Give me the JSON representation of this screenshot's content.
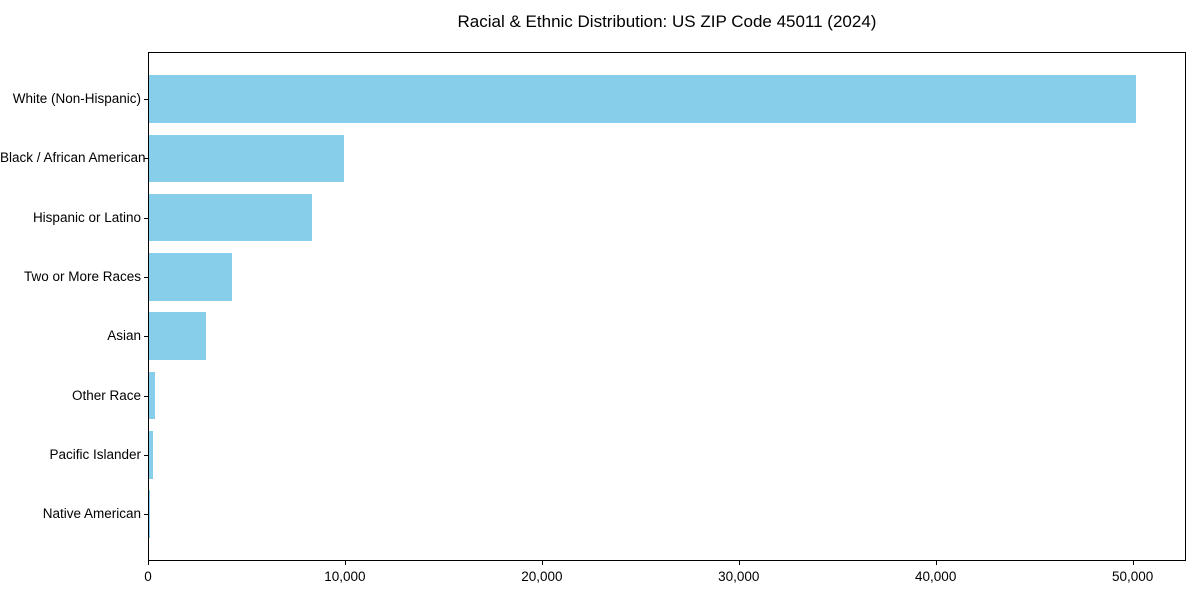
{
  "figure": {
    "background": "#ffffff"
  },
  "chart_data": {
    "type": "bar",
    "orientation": "horizontal",
    "title": "Racial & Ethnic Distribution: US ZIP Code 45011 (2024)",
    "categories": [
      "White (Non-Hispanic)",
      "Black / African American",
      "Hispanic or Latino",
      "Two or More Races",
      "Asian",
      "Other Race",
      "Pacific Islander",
      "Native American"
    ],
    "values": [
      50200,
      9900,
      8300,
      4200,
      2900,
      300,
      200,
      25
    ],
    "xlabel": "",
    "ylabel": "",
    "xlim": [
      0,
      52710
    ],
    "x_ticks": {
      "values": [
        0,
        10000,
        20000,
        30000,
        40000,
        50000
      ],
      "labels": [
        "0",
        "10,000",
        "20,000",
        "30,000",
        "40,000",
        "50,000"
      ]
    },
    "bar_color": "#87CEEB",
    "axis_color": "#000000",
    "text_color": "#000000",
    "grid": false,
    "legend": null
  }
}
